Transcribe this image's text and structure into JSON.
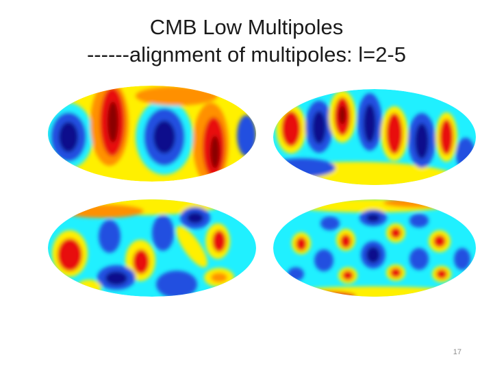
{
  "slide": {
    "title_line1": "CMB Low Multipoles",
    "title_line2": "------alignment of multipoles: l=2-5",
    "page_number": "17"
  },
  "palette": {
    "background": "#ffffff",
    "dark_blue": "#0a0a8c",
    "blue": "#2050e0",
    "cyan": "#20f0ff",
    "yellow": "#fff000",
    "orange": "#ff9000",
    "red": "#e81010",
    "dark_red": "#8b0000"
  },
  "maps": [
    {
      "name": "multipole-map-l2"
    },
    {
      "name": "multipole-map-l3"
    },
    {
      "name": "multipole-map-l4"
    },
    {
      "name": "multipole-map-l5"
    }
  ]
}
